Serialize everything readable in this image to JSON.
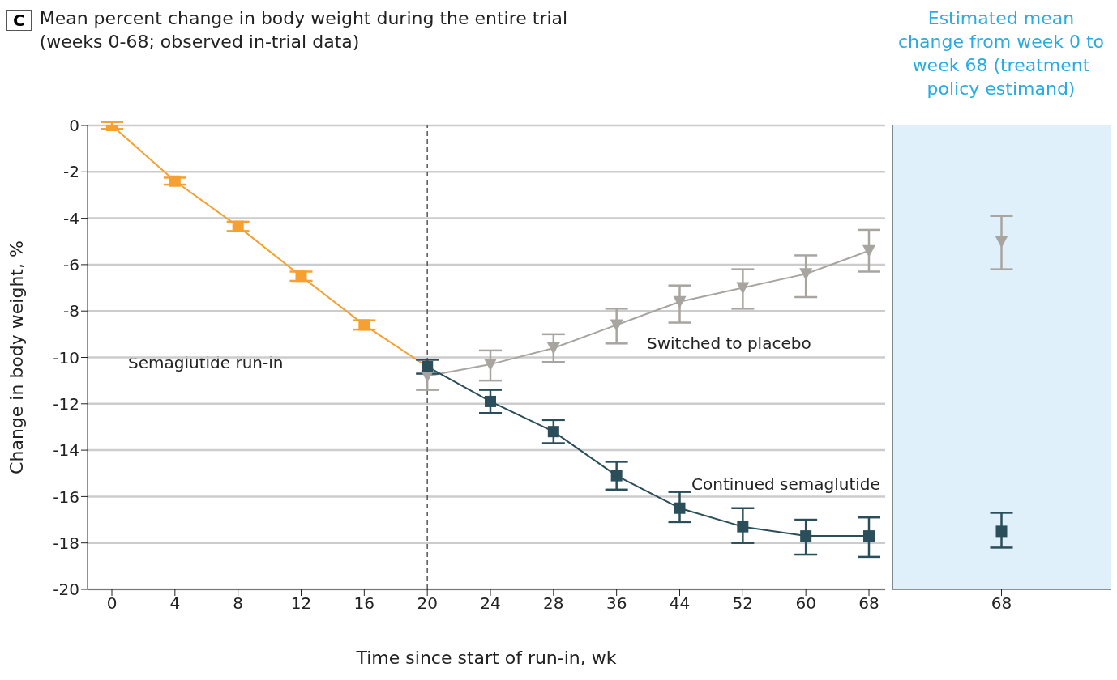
{
  "chart_data": [
    {
      "type": "line",
      "title": "Mean percent change in body weight during the entire trial (weeks 0-68; observed in-trial data)",
      "xlabel": "Time since start of run-in, wk",
      "ylabel": "Change in body weight, %",
      "categories": [
        "0",
        "4",
        "8",
        "12",
        "16",
        "20",
        "24",
        "28",
        "36",
        "44",
        "52",
        "60",
        "68"
      ],
      "ylim": [
        -20,
        0
      ],
      "yticks": [
        -20,
        -18,
        -16,
        -14,
        -12,
        -10,
        -8,
        -6,
        -4,
        -2,
        0
      ],
      "grid": "y",
      "series": [
        {
          "color": "#f5a030",
          "marker": "square",
          "values": [
            0,
            -2.4,
            -4.35,
            -6.5,
            -8.6,
            -10.4,
            null,
            null,
            null,
            null,
            null,
            null,
            null
          ],
          "errors": [
            0.15,
            0.15,
            0.2,
            0.2,
            0.2,
            null,
            null,
            null,
            null,
            null,
            null,
            null,
            null
          ]
        },
        {
          "color": "#a8a5a0",
          "marker": "triangle",
          "values": [
            null,
            null,
            null,
            null,
            null,
            -10.8,
            -10.3,
            -9.6,
            -8.6,
            -7.6,
            -7.0,
            -6.4,
            -5.4
          ],
          "errors": [
            null,
            null,
            null,
            null,
            null,
            [
              -11.4,
              -10.1
            ],
            [
              -11.0,
              -9.7
            ],
            [
              -10.2,
              -9.0
            ],
            [
              -9.4,
              -7.9
            ],
            [
              -8.5,
              -6.9
            ],
            [
              -7.9,
              -6.2
            ],
            [
              -7.4,
              -5.6
            ],
            [
              -6.3,
              -4.5
            ]
          ]
        },
        {
          "color": "#2a4e5a",
          "marker": "square",
          "values": [
            null,
            null,
            null,
            null,
            null,
            -10.4,
            -11.9,
            -13.2,
            -15.1,
            -16.5,
            -17.3,
            -17.7,
            -17.7
          ],
          "errors": [
            null,
            null,
            null,
            null,
            null,
            [
              -10.7,
              -10.1
            ],
            [
              -12.4,
              -11.4
            ],
            [
              -13.7,
              -12.7
            ],
            [
              -15.7,
              -14.5
            ],
            [
              -17.1,
              -15.8
            ],
            [
              -18.0,
              -16.5
            ],
            [
              -18.5,
              -17.0
            ],
            [
              -18.6,
              -16.9
            ]
          ]
        }
      ],
      "ref_lines": [
        {
          "axis": "x",
          "value": "20",
          "color": "#555555",
          "line_style": "dashed"
        }
      ],
      "annotations": [
        "C",
        "Semaglutide run-in",
        "Switched to placebo",
        "Continued semaglutide"
      ]
    },
    {
      "type": "scatter",
      "title": "Estimated mean change from week 0 to week 68 (treatment policy estimand)",
      "categories": [
        "68"
      ],
      "ylim": [
        -20,
        0
      ],
      "tick_labels": "x",
      "bands": [
        {
          "axis": "y",
          "from": -20,
          "to": 0,
          "color": "#dff0fa"
        }
      ],
      "series": [
        {
          "color": "#a8a5a0",
          "marker": "triangle",
          "values": [
            -5.0
          ],
          "errors": [
            [
              -6.2,
              -3.9
            ]
          ]
        },
        {
          "color": "#2a4e5a",
          "marker": "square",
          "values": [
            -17.5
          ],
          "errors": [
            [
              -18.2,
              -16.7
            ]
          ]
        }
      ]
    }
  ]
}
